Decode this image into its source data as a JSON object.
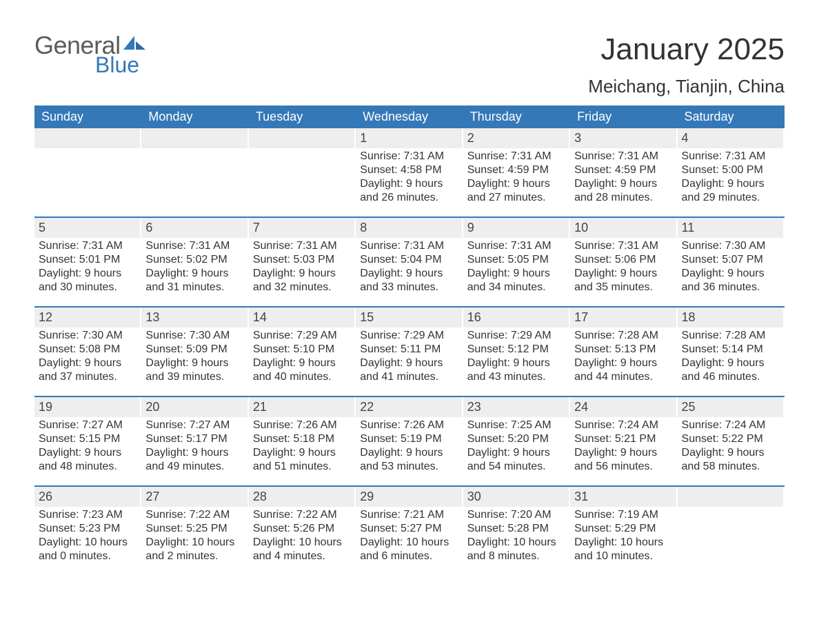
{
  "colors": {
    "blue": "#3478b8",
    "blue_dark": "#2c6aa8",
    "logo_gray": "#5b5b5b",
    "text": "#2e2e2e",
    "row_bg": "#eeeeee",
    "background": "#ffffff"
  },
  "typography": {
    "month_title_fontsize": 44,
    "location_fontsize": 26,
    "dow_fontsize": 18,
    "daynum_fontsize": 18,
    "body_fontsize": 16,
    "logo_general_fontsize": 36,
    "logo_blue_fontsize": 32,
    "font_family": "Arial"
  },
  "logo": {
    "text_general": "General",
    "text_blue": "Blue"
  },
  "title": "January 2025",
  "location": "Meichang, Tianjin, China",
  "dow": [
    "Sunday",
    "Monday",
    "Tuesday",
    "Wednesday",
    "Thursday",
    "Friday",
    "Saturday"
  ],
  "weeks": [
    [
      null,
      null,
      null,
      {
        "n": "1",
        "sunrise": "Sunrise: 7:31 AM",
        "sunset": "Sunset: 4:58 PM",
        "daylight": "Daylight: 9 hours and 26 minutes."
      },
      {
        "n": "2",
        "sunrise": "Sunrise: 7:31 AM",
        "sunset": "Sunset: 4:59 PM",
        "daylight": "Daylight: 9 hours and 27 minutes."
      },
      {
        "n": "3",
        "sunrise": "Sunrise: 7:31 AM",
        "sunset": "Sunset: 4:59 PM",
        "daylight": "Daylight: 9 hours and 28 minutes."
      },
      {
        "n": "4",
        "sunrise": "Sunrise: 7:31 AM",
        "sunset": "Sunset: 5:00 PM",
        "daylight": "Daylight: 9 hours and 29 minutes."
      }
    ],
    [
      {
        "n": "5",
        "sunrise": "Sunrise: 7:31 AM",
        "sunset": "Sunset: 5:01 PM",
        "daylight": "Daylight: 9 hours and 30 minutes."
      },
      {
        "n": "6",
        "sunrise": "Sunrise: 7:31 AM",
        "sunset": "Sunset: 5:02 PM",
        "daylight": "Daylight: 9 hours and 31 minutes."
      },
      {
        "n": "7",
        "sunrise": "Sunrise: 7:31 AM",
        "sunset": "Sunset: 5:03 PM",
        "daylight": "Daylight: 9 hours and 32 minutes."
      },
      {
        "n": "8",
        "sunrise": "Sunrise: 7:31 AM",
        "sunset": "Sunset: 5:04 PM",
        "daylight": "Daylight: 9 hours and 33 minutes."
      },
      {
        "n": "9",
        "sunrise": "Sunrise: 7:31 AM",
        "sunset": "Sunset: 5:05 PM",
        "daylight": "Daylight: 9 hours and 34 minutes."
      },
      {
        "n": "10",
        "sunrise": "Sunrise: 7:31 AM",
        "sunset": "Sunset: 5:06 PM",
        "daylight": "Daylight: 9 hours and 35 minutes."
      },
      {
        "n": "11",
        "sunrise": "Sunrise: 7:30 AM",
        "sunset": "Sunset: 5:07 PM",
        "daylight": "Daylight: 9 hours and 36 minutes."
      }
    ],
    [
      {
        "n": "12",
        "sunrise": "Sunrise: 7:30 AM",
        "sunset": "Sunset: 5:08 PM",
        "daylight": "Daylight: 9 hours and 37 minutes."
      },
      {
        "n": "13",
        "sunrise": "Sunrise: 7:30 AM",
        "sunset": "Sunset: 5:09 PM",
        "daylight": "Daylight: 9 hours and 39 minutes."
      },
      {
        "n": "14",
        "sunrise": "Sunrise: 7:29 AM",
        "sunset": "Sunset: 5:10 PM",
        "daylight": "Daylight: 9 hours and 40 minutes."
      },
      {
        "n": "15",
        "sunrise": "Sunrise: 7:29 AM",
        "sunset": "Sunset: 5:11 PM",
        "daylight": "Daylight: 9 hours and 41 minutes."
      },
      {
        "n": "16",
        "sunrise": "Sunrise: 7:29 AM",
        "sunset": "Sunset: 5:12 PM",
        "daylight": "Daylight: 9 hours and 43 minutes."
      },
      {
        "n": "17",
        "sunrise": "Sunrise: 7:28 AM",
        "sunset": "Sunset: 5:13 PM",
        "daylight": "Daylight: 9 hours and 44 minutes."
      },
      {
        "n": "18",
        "sunrise": "Sunrise: 7:28 AM",
        "sunset": "Sunset: 5:14 PM",
        "daylight": "Daylight: 9 hours and 46 minutes."
      }
    ],
    [
      {
        "n": "19",
        "sunrise": "Sunrise: 7:27 AM",
        "sunset": "Sunset: 5:15 PM",
        "daylight": "Daylight: 9 hours and 48 minutes."
      },
      {
        "n": "20",
        "sunrise": "Sunrise: 7:27 AM",
        "sunset": "Sunset: 5:17 PM",
        "daylight": "Daylight: 9 hours and 49 minutes."
      },
      {
        "n": "21",
        "sunrise": "Sunrise: 7:26 AM",
        "sunset": "Sunset: 5:18 PM",
        "daylight": "Daylight: 9 hours and 51 minutes."
      },
      {
        "n": "22",
        "sunrise": "Sunrise: 7:26 AM",
        "sunset": "Sunset: 5:19 PM",
        "daylight": "Daylight: 9 hours and 53 minutes."
      },
      {
        "n": "23",
        "sunrise": "Sunrise: 7:25 AM",
        "sunset": "Sunset: 5:20 PM",
        "daylight": "Daylight: 9 hours and 54 minutes."
      },
      {
        "n": "24",
        "sunrise": "Sunrise: 7:24 AM",
        "sunset": "Sunset: 5:21 PM",
        "daylight": "Daylight: 9 hours and 56 minutes."
      },
      {
        "n": "25",
        "sunrise": "Sunrise: 7:24 AM",
        "sunset": "Sunset: 5:22 PM",
        "daylight": "Daylight: 9 hours and 58 minutes."
      }
    ],
    [
      {
        "n": "26",
        "sunrise": "Sunrise: 7:23 AM",
        "sunset": "Sunset: 5:23 PM",
        "daylight": "Daylight: 10 hours and 0 minutes."
      },
      {
        "n": "27",
        "sunrise": "Sunrise: 7:22 AM",
        "sunset": "Sunset: 5:25 PM",
        "daylight": "Daylight: 10 hours and 2 minutes."
      },
      {
        "n": "28",
        "sunrise": "Sunrise: 7:22 AM",
        "sunset": "Sunset: 5:26 PM",
        "daylight": "Daylight: 10 hours and 4 minutes."
      },
      {
        "n": "29",
        "sunrise": "Sunrise: 7:21 AM",
        "sunset": "Sunset: 5:27 PM",
        "daylight": "Daylight: 10 hours and 6 minutes."
      },
      {
        "n": "30",
        "sunrise": "Sunrise: 7:20 AM",
        "sunset": "Sunset: 5:28 PM",
        "daylight": "Daylight: 10 hours and 8 minutes."
      },
      {
        "n": "31",
        "sunrise": "Sunrise: 7:19 AM",
        "sunset": "Sunset: 5:29 PM",
        "daylight": "Daylight: 10 hours and 10 minutes."
      },
      null
    ]
  ]
}
